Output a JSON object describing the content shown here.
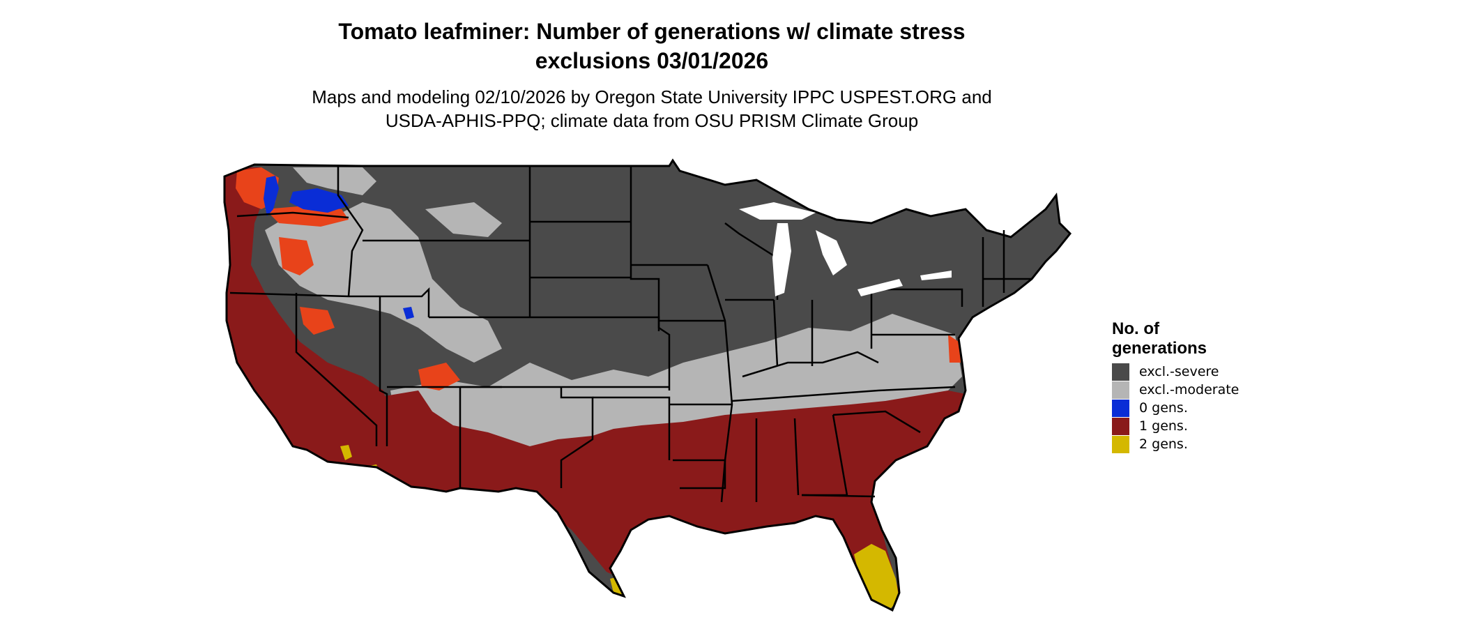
{
  "title": {
    "line1": "Tomato leafminer: Number of generations w/ climate stress",
    "line2": "exclusions 03/01/2026"
  },
  "subtitle": {
    "line1": "Maps and modeling 02/10/2026 by Oregon State University IPPC USPEST.ORG and",
    "line2": "USDA-APHIS-PPQ; climate data from OSU PRISM Climate Group"
  },
  "legend": {
    "title": "No. of generations",
    "items": [
      {
        "label": "excl.-severe",
        "color": "#4a4a4a"
      },
      {
        "label": "excl.-moderate",
        "color": "#b5b5b5"
      },
      {
        "label": "0 gens.",
        "color": "#0a2dd6"
      },
      {
        "label": "1 gens.",
        "color": "#8a1a1a"
      },
      {
        "label": "2 gens.",
        "color": "#d4b800"
      }
    ]
  },
  "colors": {
    "severe": "#4a4a4a",
    "moderate": "#b5b5b5",
    "zero": "#0a2dd6",
    "one": "#8a1a1a",
    "one_bright": "#e8431a",
    "two": "#d4b800",
    "border": "#000000",
    "background": "#ffffff"
  }
}
